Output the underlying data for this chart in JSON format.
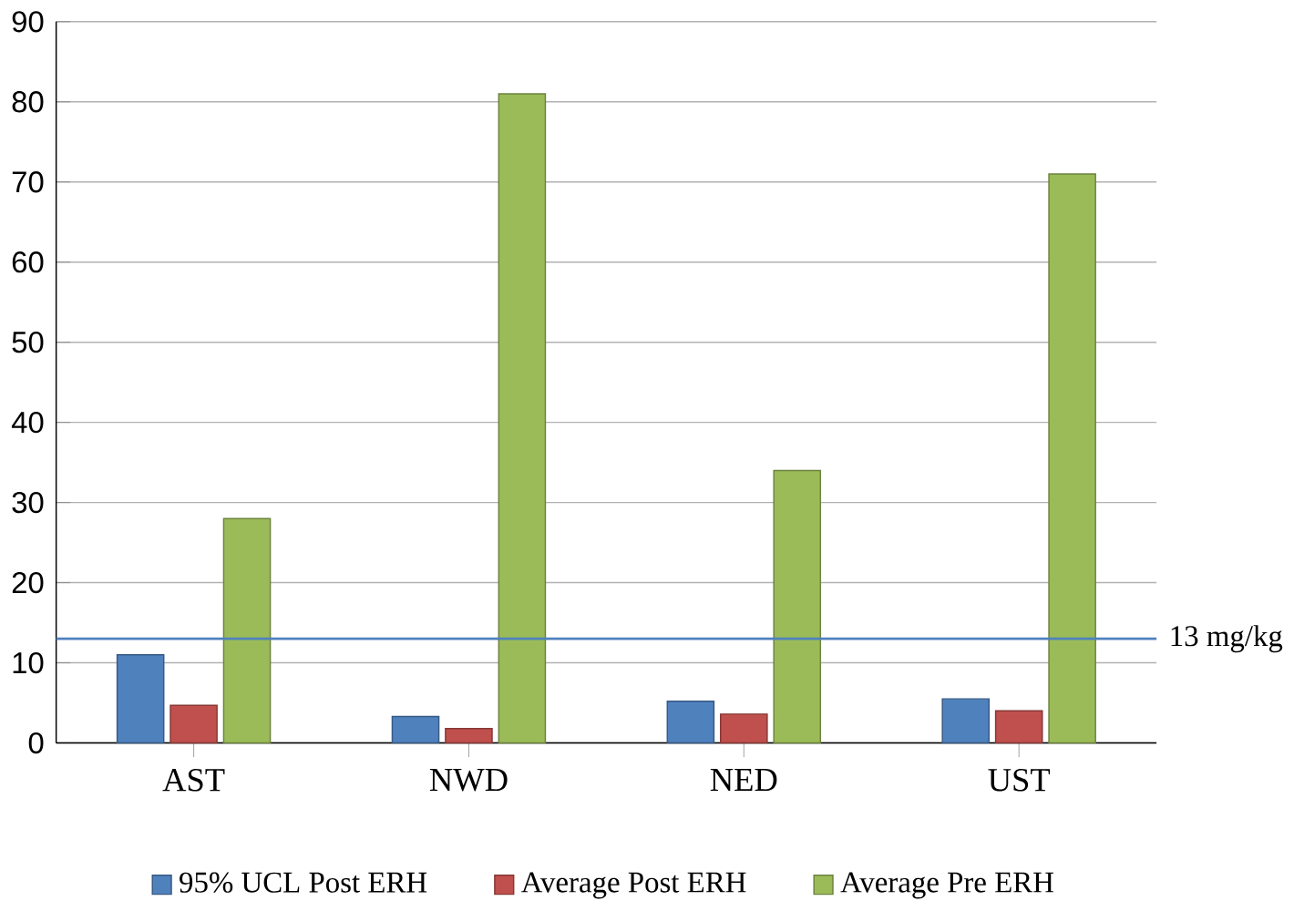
{
  "chart_data": {
    "type": "bar",
    "categories": [
      "AST",
      "NWD",
      "NED",
      "UST"
    ],
    "series": [
      {
        "name": "95% UCL Post ERH",
        "color": "#4f81bd",
        "values": [
          11,
          3.3,
          5.2,
          5.5
        ]
      },
      {
        "name": "Average Post ERH",
        "color": "#c0504d",
        "values": [
          4.7,
          1.8,
          3.6,
          4
        ]
      },
      {
        "name": "Average Pre ERH",
        "color": "#9bbb59",
        "values": [
          28,
          81,
          34,
          71
        ]
      }
    ],
    "ylim": [
      0,
      90
    ],
    "yticks": [
      0,
      10,
      20,
      30,
      40,
      50,
      60,
      70,
      80,
      90
    ],
    "grid": "y",
    "legend": "bottom",
    "ref_lines": [
      {
        "axis": "y",
        "value": 13,
        "label": "13 mg/kg",
        "color": "#4f81bd"
      }
    ]
  }
}
